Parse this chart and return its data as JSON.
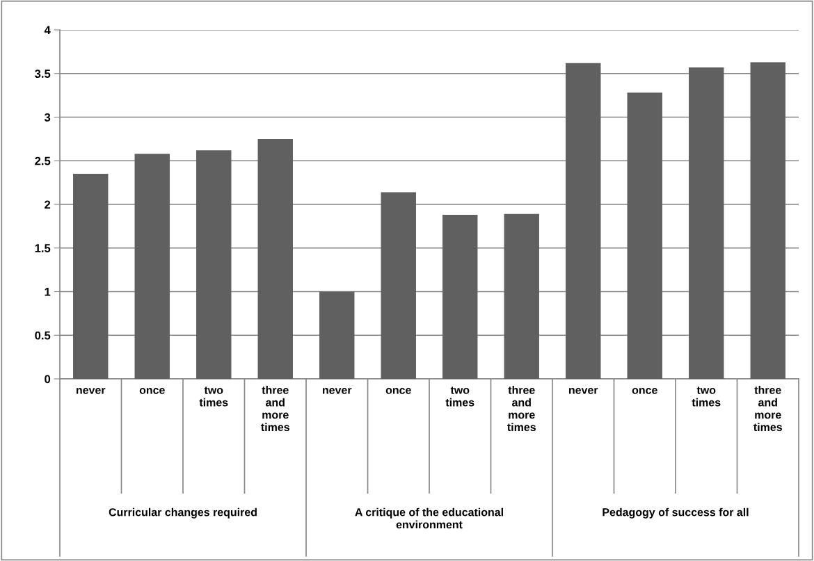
{
  "chart_data": {
    "type": "bar",
    "categories": [
      "never",
      "once",
      "two\ntimes",
      "three\nand\nmore\ntimes",
      "never",
      "once",
      "two\ntimes",
      "three\nand\nmore\ntimes",
      "never",
      "once",
      "two\ntimes",
      "three\nand\nmore\ntimes"
    ],
    "values": [
      2.35,
      2.58,
      2.62,
      2.75,
      1.0,
      2.14,
      1.88,
      1.89,
      3.62,
      3.28,
      3.57,
      3.63
    ],
    "color": "#606060",
    "annotations": [
      "Curricular changes required",
      "A critique of the educational\nenvironment",
      "Pedagogy of success for all"
    ],
    "ylim": [
      0,
      4
    ],
    "yticks": [
      0,
      0.5,
      1,
      1.5,
      2,
      2.5,
      3,
      3.5,
      4
    ],
    "grid": "y",
    "legend": false
  }
}
